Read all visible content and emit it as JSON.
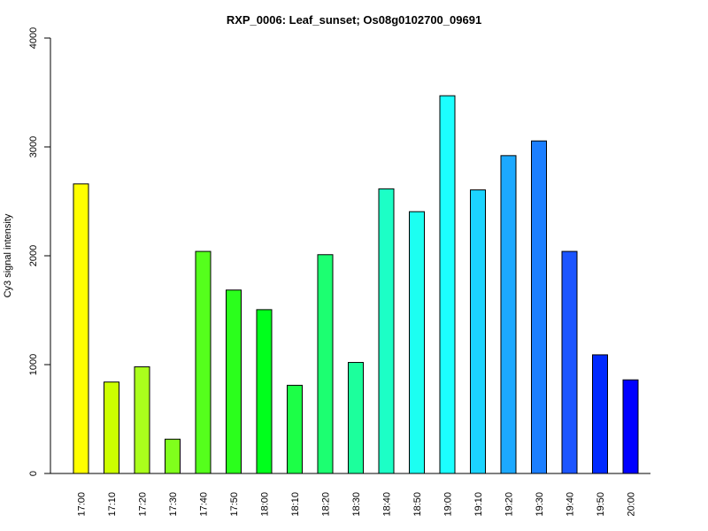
{
  "chart_data": {
    "type": "bar",
    "title": "RXP_0006: Leaf_sunset; Os08g0102700_09691",
    "xlabel": "",
    "ylabel": "Cy3 signal intensity",
    "ylim": [
      0,
      4000
    ],
    "yticks": [
      "0",
      "1000",
      "2000",
      "3000",
      "4000"
    ],
    "grid": false,
    "categories": [
      "17:00",
      "17:10",
      "17:20",
      "17:30",
      "17:40",
      "17:50",
      "18:00",
      "18:10",
      "18:20",
      "18:30",
      "18:40",
      "18:50",
      "19:00",
      "19:10",
      "19:20",
      "19:30",
      "19:40",
      "19:50",
      "20:00"
    ],
    "values": [
      2660,
      840,
      980,
      315,
      2040,
      1685,
      1505,
      810,
      2010,
      1020,
      2615,
      2405,
      3470,
      2605,
      2920,
      3055,
      2040,
      1090,
      860
    ],
    "colors": [
      "#ffff00",
      "#ccff00",
      "#aaff1c",
      "#80ff1c",
      "#55ff1c",
      "#2bff1c",
      "#00ff1c",
      "#1cff47",
      "#1cff71",
      "#1cff9c",
      "#1cffc6",
      "#1cfff1",
      "#1cffff",
      "#1cd4ff",
      "#1ca9ff",
      "#1c7fff",
      "#1c55ff",
      "#002aff",
      "#0000ff"
    ]
  }
}
